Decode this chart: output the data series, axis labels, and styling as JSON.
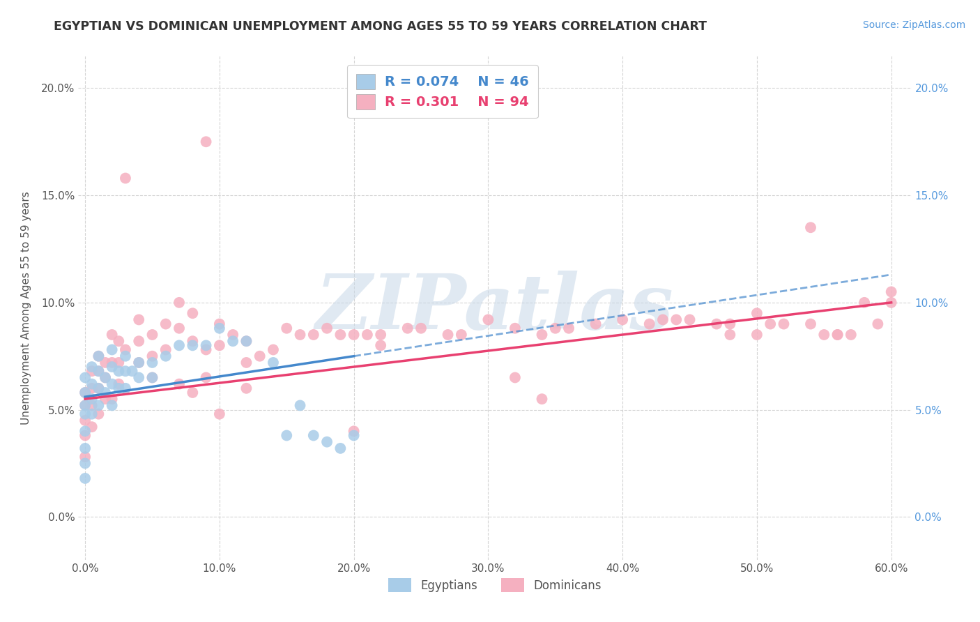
{
  "title": "EGYPTIAN VS DOMINICAN UNEMPLOYMENT AMONG AGES 55 TO 59 YEARS CORRELATION CHART",
  "source": "Source: ZipAtlas.com",
  "ylabel": "Unemployment Among Ages 55 to 59 years",
  "xlim": [
    -0.005,
    0.615
  ],
  "ylim": [
    -0.02,
    0.215
  ],
  "xticks": [
    0.0,
    0.1,
    0.2,
    0.3,
    0.4,
    0.5,
    0.6
  ],
  "xticklabels": [
    "0.0%",
    "10.0%",
    "20.0%",
    "30.0%",
    "40.0%",
    "50.0%",
    "60.0%"
  ],
  "yticks": [
    0.0,
    0.05,
    0.1,
    0.15,
    0.2
  ],
  "yticklabels": [
    "0.0%",
    "5.0%",
    "10.0%",
    "15.0%",
    "20.0%"
  ],
  "legend_r1": "R = 0.074",
  "legend_n1": "N = 46",
  "legend_r2": "R = 0.301",
  "legend_n2": "N = 94",
  "egyptian_color": "#a8cce8",
  "dominican_color": "#f5b0c0",
  "egyptian_trend_color": "#4488cc",
  "dominican_trend_color": "#e84070",
  "watermark": "ZIPatlas",
  "bg": "#ffffff",
  "grid_color": "#d0d0d0",
  "right_tick_color": "#5599dd",
  "title_color": "#333333",
  "source_color": "#5599dd",
  "eg_x": [
    0.0,
    0.0,
    0.0,
    0.0,
    0.0,
    0.0,
    0.0,
    0.0,
    0.005,
    0.005,
    0.005,
    0.005,
    0.01,
    0.01,
    0.01,
    0.01,
    0.015,
    0.015,
    0.02,
    0.02,
    0.02,
    0.02,
    0.025,
    0.025,
    0.03,
    0.03,
    0.03,
    0.035,
    0.04,
    0.04,
    0.05,
    0.05,
    0.06,
    0.07,
    0.08,
    0.09,
    0.1,
    0.11,
    0.12,
    0.14,
    0.15,
    0.16,
    0.17,
    0.18,
    0.19,
    0.2
  ],
  "eg_y": [
    0.065,
    0.058,
    0.052,
    0.048,
    0.04,
    0.032,
    0.025,
    0.018,
    0.07,
    0.062,
    0.055,
    0.048,
    0.075,
    0.068,
    0.06,
    0.052,
    0.065,
    0.058,
    0.078,
    0.07,
    0.062,
    0.052,
    0.068,
    0.06,
    0.075,
    0.068,
    0.06,
    0.068,
    0.072,
    0.065,
    0.072,
    0.065,
    0.075,
    0.08,
    0.08,
    0.08,
    0.088,
    0.082,
    0.082,
    0.072,
    0.038,
    0.052,
    0.038,
    0.035,
    0.032,
    0.038
  ],
  "dom_x": [
    0.0,
    0.0,
    0.0,
    0.0,
    0.0,
    0.005,
    0.005,
    0.005,
    0.005,
    0.01,
    0.01,
    0.01,
    0.01,
    0.015,
    0.015,
    0.015,
    0.02,
    0.02,
    0.02,
    0.025,
    0.025,
    0.025,
    0.03,
    0.03,
    0.04,
    0.04,
    0.04,
    0.05,
    0.05,
    0.05,
    0.06,
    0.06,
    0.07,
    0.07,
    0.08,
    0.08,
    0.09,
    0.1,
    0.1,
    0.11,
    0.12,
    0.12,
    0.13,
    0.14,
    0.15,
    0.16,
    0.17,
    0.18,
    0.19,
    0.2,
    0.21,
    0.22,
    0.24,
    0.25,
    0.27,
    0.28,
    0.3,
    0.32,
    0.34,
    0.35,
    0.36,
    0.38,
    0.4,
    0.42,
    0.43,
    0.44,
    0.45,
    0.47,
    0.48,
    0.5,
    0.51,
    0.52,
    0.54,
    0.55,
    0.56,
    0.57,
    0.58,
    0.59,
    0.6,
    0.54,
    0.56,
    0.48,
    0.5,
    0.2,
    0.22,
    0.32,
    0.34,
    0.1,
    0.12,
    0.07,
    0.08,
    0.09,
    0.09,
    0.6
  ],
  "dom_y": [
    0.058,
    0.052,
    0.045,
    0.038,
    0.028,
    0.068,
    0.06,
    0.052,
    0.042,
    0.075,
    0.068,
    0.06,
    0.048,
    0.072,
    0.065,
    0.055,
    0.085,
    0.072,
    0.055,
    0.082,
    0.072,
    0.062,
    0.158,
    0.078,
    0.092,
    0.082,
    0.072,
    0.085,
    0.075,
    0.065,
    0.09,
    0.078,
    0.1,
    0.088,
    0.095,
    0.082,
    0.175,
    0.09,
    0.08,
    0.085,
    0.082,
    0.072,
    0.075,
    0.078,
    0.088,
    0.085,
    0.085,
    0.088,
    0.085,
    0.085,
    0.085,
    0.085,
    0.088,
    0.088,
    0.085,
    0.085,
    0.092,
    0.088,
    0.085,
    0.088,
    0.088,
    0.09,
    0.092,
    0.09,
    0.092,
    0.092,
    0.092,
    0.09,
    0.09,
    0.095,
    0.09,
    0.09,
    0.09,
    0.085,
    0.085,
    0.085,
    0.1,
    0.09,
    0.1,
    0.135,
    0.085,
    0.085,
    0.085,
    0.04,
    0.08,
    0.065,
    0.055,
    0.048,
    0.06,
    0.062,
    0.058,
    0.078,
    0.065,
    0.105
  ],
  "eg_trend_x0": 0.0,
  "eg_trend_x1": 0.2,
  "eg_trend_y0": 0.056,
  "eg_trend_y1": 0.075,
  "dom_trend_x0": 0.0,
  "dom_trend_x1": 0.6,
  "dom_trend_y0": 0.055,
  "dom_trend_y1": 0.1
}
